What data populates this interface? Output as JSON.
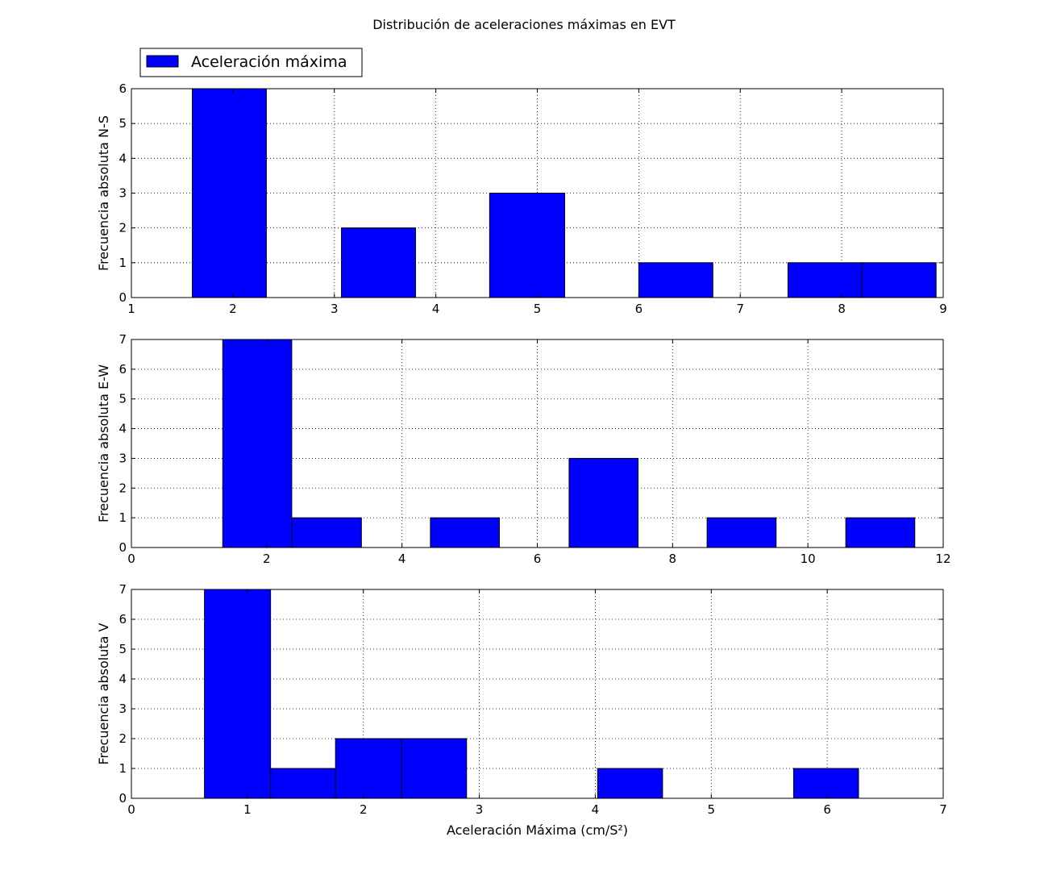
{
  "figure": {
    "title": "Distribución de aceleraciones máximas en EVT",
    "legend_label": "Aceleración máxima",
    "legend_position": "top-left",
    "bar_color": "#0000ff"
  },
  "chart_data": [
    {
      "type": "bar",
      "ylabel": "Frecuencia absoluta N-S",
      "xlabel": "",
      "xlim": [
        1,
        9
      ],
      "ylim": [
        0,
        6
      ],
      "xticks": [
        1,
        2,
        3,
        4,
        5,
        6,
        7,
        8,
        9
      ],
      "yticks": [
        0,
        1,
        2,
        3,
        4,
        5,
        6
      ],
      "grid": true,
      "bins": [
        {
          "x0": 1.6,
          "x1": 2.33,
          "count": 6
        },
        {
          "x0": 3.07,
          "x1": 3.8,
          "count": 2
        },
        {
          "x0": 4.53,
          "x1": 5.27,
          "count": 3
        },
        {
          "x0": 6.0,
          "x1": 6.73,
          "count": 1
        },
        {
          "x0": 7.47,
          "x1": 8.2,
          "count": 1
        },
        {
          "x0": 8.2,
          "x1": 8.93,
          "count": 1
        }
      ]
    },
    {
      "type": "bar",
      "ylabel": "Frecuencia absoluta E-W",
      "xlabel": "",
      "xlim": [
        0,
        12
      ],
      "ylim": [
        0,
        7
      ],
      "xticks": [
        0,
        2,
        4,
        6,
        8,
        10,
        12
      ],
      "yticks": [
        0,
        1,
        2,
        3,
        4,
        5,
        6,
        7
      ],
      "grid": true,
      "bins": [
        {
          "x0": 1.35,
          "x1": 2.37,
          "count": 7
        },
        {
          "x0": 2.37,
          "x1": 3.4,
          "count": 1
        },
        {
          "x0": 4.42,
          "x1": 5.44,
          "count": 1
        },
        {
          "x0": 6.47,
          "x1": 7.49,
          "count": 3
        },
        {
          "x0": 8.51,
          "x1": 9.53,
          "count": 1
        },
        {
          "x0": 10.56,
          "x1": 11.58,
          "count": 1
        }
      ]
    },
    {
      "type": "bar",
      "ylabel": "Frecuencia absoluta V",
      "xlabel": "Aceleración Máxima (cm/S²)",
      "xlim": [
        0,
        7
      ],
      "ylim": [
        0,
        7
      ],
      "xticks": [
        0,
        1,
        2,
        3,
        4,
        5,
        6,
        7
      ],
      "yticks": [
        0,
        1,
        2,
        3,
        4,
        5,
        6,
        7
      ],
      "grid": true,
      "bins": [
        {
          "x0": 0.63,
          "x1": 1.2,
          "count": 7
        },
        {
          "x0": 1.2,
          "x1": 1.76,
          "count": 1
        },
        {
          "x0": 1.76,
          "x1": 2.33,
          "count": 2
        },
        {
          "x0": 2.33,
          "x1": 2.89,
          "count": 2
        },
        {
          "x0": 4.02,
          "x1": 4.58,
          "count": 1
        },
        {
          "x0": 5.71,
          "x1": 6.27,
          "count": 1
        }
      ]
    }
  ]
}
